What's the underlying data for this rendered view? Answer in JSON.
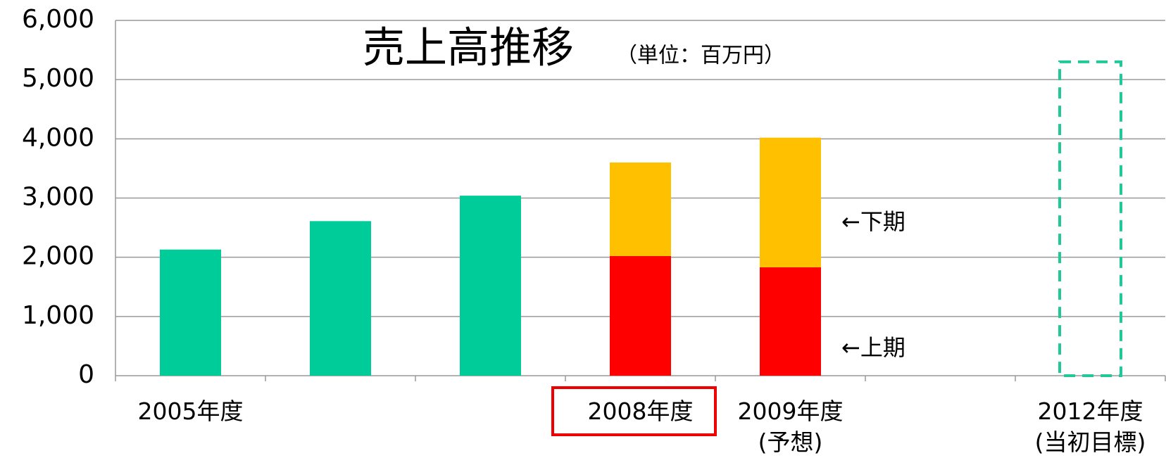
{
  "chart_data": {
    "type": "bar",
    "stack": true,
    "title": "売上高推移",
    "subtitle": "（単位：百万円）",
    "categories": [
      "2005年度",
      null,
      null,
      "2008年度",
      "2009年度\n(予想)",
      null,
      "2012年度\n(当初目標)"
    ],
    "highlight_category": 3,
    "series": [
      {
        "color": "#00cc99",
        "values": [
          2130,
          2610,
          3040,
          null,
          null,
          null,
          null
        ]
      },
      {
        "name": "←上期",
        "color": "#ff0000",
        "values": [
          null,
          null,
          null,
          2020,
          1830,
          null,
          null
        ]
      },
      {
        "name": "←下期",
        "color": "#ffc000",
        "values": [
          null,
          null,
          null,
          1580,
          2190,
          null,
          null
        ]
      },
      {
        "color": "#20c997",
        "dashed": true,
        "values": [
          null,
          null,
          null,
          null,
          null,
          null,
          5300
        ]
      }
    ],
    "ylim": [
      0,
      6000
    ],
    "yticks": [
      {
        "value": 0,
        "label": "0"
      },
      {
        "value": 1000,
        "label": "1,000"
      },
      {
        "value": 2000,
        "label": "2,000"
      },
      {
        "value": 3000,
        "label": "3,000"
      },
      {
        "value": 4000,
        "label": "4,000"
      },
      {
        "value": 5000,
        "label": "5,000"
      },
      {
        "value": 6000,
        "label": "6,000"
      }
    ],
    "grid": true
  }
}
